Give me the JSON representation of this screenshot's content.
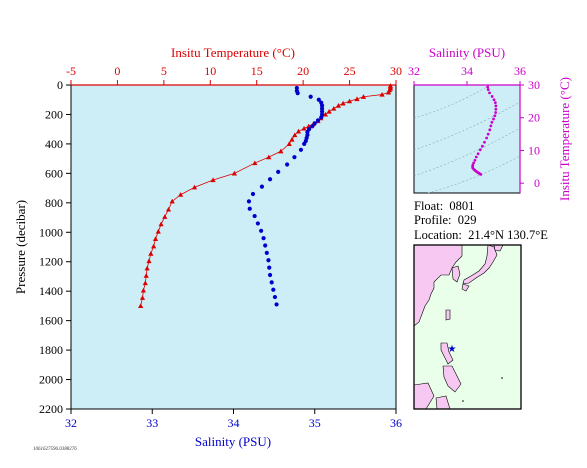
{
  "colors": {
    "temperature": "#dd0000",
    "salinity": "#0000cc",
    "salinity_ts": "#cc00cc",
    "plot_bg": "#cdeef7",
    "map_sea": "#eaffea",
    "map_land": "#f7c9f2"
  },
  "info": {
    "float_label": "Float:",
    "float_value": "0801",
    "profile_label": "Profile:",
    "profile_value": "029",
    "location_label": "Location:",
    "location_value": "21.4°N  130.7°E"
  },
  "footnote": "1061627596.0388276",
  "chart_data": [
    {
      "type": "scatter",
      "title": "",
      "top_xlabel": "Insitu Temperature (°C)",
      "bottom_xlabel": "Salinity (PSU)",
      "ylabel": "Pressure (decibar)",
      "y_inverted": true,
      "ylim": [
        0,
        2200
      ],
      "y_ticks": [
        0,
        200,
        400,
        600,
        800,
        1000,
        1200,
        1400,
        1600,
        1800,
        2000,
        2200
      ],
      "temp_xlim": [
        -5,
        30
      ],
      "temp_ticks": [
        -5,
        0,
        5,
        10,
        15,
        20,
        25,
        30
      ],
      "sal_xlim": [
        32,
        36
      ],
      "sal_ticks": [
        32,
        33,
        34,
        35,
        36
      ],
      "series": [
        {
          "axis": "temperature",
          "marker": "triangle",
          "points": [
            {
              "t": 29.4,
              "p": 5
            },
            {
              "t": 29.4,
              "p": 15
            },
            {
              "t": 29.4,
              "p": 25
            },
            {
              "t": 29.3,
              "p": 35
            },
            {
              "t": 29.2,
              "p": 50
            },
            {
              "t": 28.5,
              "p": 65
            },
            {
              "t": 26.5,
              "p": 80
            },
            {
              "t": 25.8,
              "p": 95
            },
            {
              "t": 25.0,
              "p": 110
            },
            {
              "t": 24.3,
              "p": 125
            },
            {
              "t": 23.8,
              "p": 140
            },
            {
              "t": 23.3,
              "p": 160
            },
            {
              "t": 22.8,
              "p": 180
            },
            {
              "t": 22.4,
              "p": 200
            },
            {
              "t": 21.9,
              "p": 225
            },
            {
              "t": 21.6,
              "p": 245
            },
            {
              "t": 21.1,
              "p": 265
            },
            {
              "t": 20.6,
              "p": 280
            },
            {
              "t": 20.1,
              "p": 295
            },
            {
              "t": 19.5,
              "p": 315
            },
            {
              "t": 19.1,
              "p": 340
            },
            {
              "t": 18.8,
              "p": 370
            },
            {
              "t": 18.5,
              "p": 400
            },
            {
              "t": 17.6,
              "p": 450
            },
            {
              "t": 16.3,
              "p": 490
            },
            {
              "t": 14.8,
              "p": 530
            },
            {
              "t": 12.6,
              "p": 600
            },
            {
              "t": 10.3,
              "p": 645
            },
            {
              "t": 8.3,
              "p": 695
            },
            {
              "t": 6.8,
              "p": 745
            },
            {
              "t": 5.9,
              "p": 790
            },
            {
              "t": 5.5,
              "p": 845
            },
            {
              "t": 5.1,
              "p": 895
            },
            {
              "t": 4.7,
              "p": 945
            },
            {
              "t": 4.4,
              "p": 995
            },
            {
              "t": 4.1,
              "p": 1045
            },
            {
              "t": 3.9,
              "p": 1095
            },
            {
              "t": 3.6,
              "p": 1145
            },
            {
              "t": 3.4,
              "p": 1195
            },
            {
              "t": 3.2,
              "p": 1245
            },
            {
              "t": 3.1,
              "p": 1295
            },
            {
              "t": 3.0,
              "p": 1345
            },
            {
              "t": 2.8,
              "p": 1395
            },
            {
              "t": 2.7,
              "p": 1445
            },
            {
              "t": 2.5,
              "p": 1500
            }
          ]
        },
        {
          "axis": "salinity",
          "marker": "circle",
          "points": [
            {
              "s": 34.78,
              "p": 20
            },
            {
              "s": 34.78,
              "p": 40
            },
            {
              "s": 34.79,
              "p": 55
            },
            {
              "s": 34.95,
              "p": 80
            },
            {
              "s": 35.05,
              "p": 100
            },
            {
              "s": 35.08,
              "p": 120
            },
            {
              "s": 35.09,
              "p": 140
            },
            {
              "s": 35.09,
              "p": 160
            },
            {
              "s": 35.09,
              "p": 180
            },
            {
              "s": 35.09,
              "p": 200
            },
            {
              "s": 35.08,
              "p": 220
            },
            {
              "s": 35.04,
              "p": 240
            },
            {
              "s": 35.0,
              "p": 260
            },
            {
              "s": 34.97,
              "p": 280
            },
            {
              "s": 34.93,
              "p": 300
            },
            {
              "s": 34.91,
              "p": 320
            },
            {
              "s": 34.91,
              "p": 340
            },
            {
              "s": 34.9,
              "p": 360
            },
            {
              "s": 34.89,
              "p": 380
            },
            {
              "s": 34.87,
              "p": 400
            },
            {
              "s": 34.83,
              "p": 440
            },
            {
              "s": 34.75,
              "p": 490
            },
            {
              "s": 34.66,
              "p": 540
            },
            {
              "s": 34.55,
              "p": 590
            },
            {
              "s": 34.45,
              "p": 640
            },
            {
              "s": 34.35,
              "p": 690
            },
            {
              "s": 34.24,
              "p": 740
            },
            {
              "s": 34.19,
              "p": 790
            },
            {
              "s": 34.2,
              "p": 840
            },
            {
              "s": 34.26,
              "p": 890
            },
            {
              "s": 34.3,
              "p": 940
            },
            {
              "s": 34.34,
              "p": 990
            },
            {
              "s": 34.37,
              "p": 1040
            },
            {
              "s": 34.39,
              "p": 1090
            },
            {
              "s": 34.41,
              "p": 1140
            },
            {
              "s": 34.43,
              "p": 1190
            },
            {
              "s": 34.44,
              "p": 1240
            },
            {
              "s": 34.45,
              "p": 1290
            },
            {
              "s": 34.47,
              "p": 1340
            },
            {
              "s": 34.49,
              "p": 1390
            },
            {
              "s": 34.51,
              "p": 1440
            },
            {
              "s": 34.53,
              "p": 1490
            }
          ]
        }
      ]
    },
    {
      "type": "scatter",
      "title": "",
      "top_xlabel": "Salinity (PSU)",
      "right_ylabel": "Insitu Temperature (°C)",
      "xlim": [
        32,
        36
      ],
      "x_ticks": [
        32,
        34,
        36
      ],
      "ylim": [
        -3,
        30
      ],
      "y_ticks": [
        0,
        10,
        20,
        30
      ],
      "points": [
        {
          "s": 34.78,
          "t": 29.4
        },
        {
          "s": 34.8,
          "t": 28.6
        },
        {
          "s": 34.85,
          "t": 27.6
        },
        {
          "s": 34.95,
          "t": 26.5
        },
        {
          "s": 35.02,
          "t": 25.5
        },
        {
          "s": 35.07,
          "t": 24.6
        },
        {
          "s": 35.09,
          "t": 23.6
        },
        {
          "s": 35.09,
          "t": 22.6
        },
        {
          "s": 35.08,
          "t": 21.6
        },
        {
          "s": 35.05,
          "t": 20.6
        },
        {
          "s": 35.0,
          "t": 19.6
        },
        {
          "s": 34.94,
          "t": 18.6
        },
        {
          "s": 34.9,
          "t": 17.5
        },
        {
          "s": 34.86,
          "t": 16.3
        },
        {
          "s": 34.8,
          "t": 15.0
        },
        {
          "s": 34.74,
          "t": 13.8
        },
        {
          "s": 34.66,
          "t": 12.5
        },
        {
          "s": 34.58,
          "t": 11.3
        },
        {
          "s": 34.5,
          "t": 10.2
        },
        {
          "s": 34.42,
          "t": 9.0
        },
        {
          "s": 34.35,
          "t": 8.0
        },
        {
          "s": 34.3,
          "t": 7.0
        },
        {
          "s": 34.25,
          "t": 6.2
        },
        {
          "s": 34.22,
          "t": 5.5
        },
        {
          "s": 34.21,
          "t": 5.0
        },
        {
          "s": 34.22,
          "t": 4.6
        },
        {
          "s": 34.26,
          "t": 4.2
        },
        {
          "s": 34.3,
          "t": 3.9
        },
        {
          "s": 34.35,
          "t": 3.6
        },
        {
          "s": 34.4,
          "t": 3.3
        },
        {
          "s": 34.44,
          "t": 3.1
        },
        {
          "s": 34.48,
          "t": 2.9
        },
        {
          "s": 34.52,
          "t": 2.7
        }
      ]
    }
  ]
}
